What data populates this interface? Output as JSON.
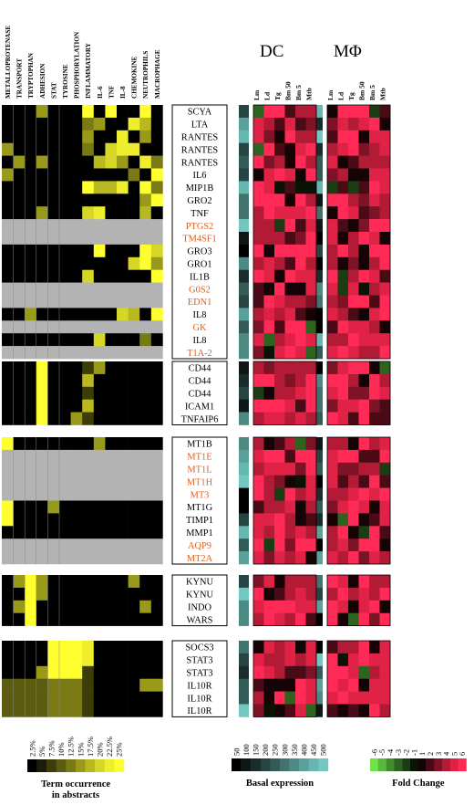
{
  "term_columns": [
    "METALLOPROTENASE",
    "TRANSPORT",
    "TRYPTOPHAN",
    "ADHESION",
    "STAT",
    "TYROSINE",
    "PHOSPHORYLATION",
    "INFLAMMATORY",
    "IL-6",
    "TNF",
    "IL-8",
    "CHEMOKINE",
    "NEUTROPHILS",
    "MACROPHAGE"
  ],
  "panels": [
    {
      "name": "DC",
      "columns": [
        "Lm",
        "Ld",
        "Tg",
        "Bm 50",
        "Bm 5",
        "Mtb"
      ]
    },
    {
      "name": "MΦ",
      "columns": [
        "Lm",
        "Ld",
        "Tg",
        "Bm 50",
        "Bm 5",
        "Mtb"
      ]
    }
  ],
  "groups": [
    {
      "genes": [
        {
          "label": "SCYA",
          "highlight": false
        },
        {
          "label": "LTA",
          "highlight": false
        },
        {
          "label": "RANTES",
          "highlight": false
        },
        {
          "label": "RANTES",
          "highlight": false
        },
        {
          "label": "RANTES",
          "highlight": false
        },
        {
          "label": "IL6",
          "highlight": false
        },
        {
          "label": "MIP1B",
          "highlight": false
        },
        {
          "label": "GRO2",
          "highlight": false
        },
        {
          "label": "TNF",
          "highlight": false
        },
        {
          "label": "PTGS2",
          "highlight": true
        },
        {
          "label": "TM4SF1",
          "highlight": true
        },
        {
          "label": "GRO3",
          "highlight": false
        },
        {
          "label": "GRO1",
          "highlight": false
        },
        {
          "label": "IL1B",
          "highlight": false
        },
        {
          "label": "G0S2",
          "highlight": true
        },
        {
          "label": "EDN1",
          "highlight": true
        },
        {
          "label": "IL8",
          "highlight": false
        },
        {
          "label": "GK",
          "highlight": true
        },
        {
          "label": "IL8",
          "highlight": false
        },
        {
          "label": "T1A-2",
          "highlight": true
        }
      ]
    },
    {
      "genes": [
        {
          "label": "CD44",
          "highlight": false
        },
        {
          "label": "CD44",
          "highlight": false
        },
        {
          "label": "CD44",
          "highlight": false
        },
        {
          "label": "ICAM1",
          "highlight": false
        },
        {
          "label": "TNFAIP6",
          "highlight": false
        }
      ]
    },
    {
      "genes": [
        {
          "label": "MT1B",
          "highlight": false
        },
        {
          "label": "MT1E",
          "highlight": true
        },
        {
          "label": "MT1L",
          "highlight": true
        },
        {
          "label": "MT1H",
          "highlight": true
        },
        {
          "label": "MT3",
          "highlight": true
        },
        {
          "label": "MT1G",
          "highlight": false
        },
        {
          "label": "TIMP1",
          "highlight": false
        },
        {
          "label": "MMP1",
          "highlight": false
        },
        {
          "label": "AQP9",
          "highlight": true
        },
        {
          "label": "MT2A",
          "highlight": true
        }
      ]
    },
    {
      "genes": [
        {
          "label": "KYNU",
          "highlight": false
        },
        {
          "label": "KYNU",
          "highlight": false
        },
        {
          "label": "INDO",
          "highlight": false
        },
        {
          "label": "WARS",
          "highlight": false
        }
      ]
    },
    {
      "genes": [
        {
          "label": "SOCS3",
          "highlight": false
        },
        {
          "label": "STAT3",
          "highlight": false
        },
        {
          "label": "STAT3",
          "highlight": false
        },
        {
          "label": "IL10R",
          "highlight": false
        },
        {
          "label": "IL10R",
          "highlight": false
        },
        {
          "label": "IL10R",
          "highlight": false
        }
      ]
    }
  ],
  "legends": {
    "term": {
      "title_line1": "Term occurrence",
      "title_line2": "in abstracts",
      "ticks": [
        "2.5%",
        "5%",
        "7.5%",
        "10%",
        "12.5%",
        "15%",
        "17.5%",
        "20%",
        "22.5%",
        "25%"
      ],
      "colors": [
        "#000000",
        "#1d1d05",
        "#3d3d08",
        "#5c5c10",
        "#7a7a14",
        "#99991a",
        "#b8b820",
        "#d6d626",
        "#eeee2c",
        "#ffff30"
      ]
    },
    "basal": {
      "title": "Basal expression",
      "ticks": [
        "50",
        "100",
        "150",
        "200",
        "250",
        "300",
        "350",
        "400",
        "450",
        "500"
      ],
      "colors": [
        "#000000",
        "#0e1716",
        "#1a2d2b",
        "#264441",
        "#335c58",
        "#41746f",
        "#4d8a84",
        "#5aa19a",
        "#66b7b0",
        "#72c8c0"
      ]
    },
    "fold": {
      "title": "Fold Change",
      "ticks": [
        "-6",
        "-5",
        "-4",
        "-3",
        "-2",
        "-1",
        "1",
        "2",
        "3",
        "4",
        "5",
        "6"
      ],
      "colors": [
        "#6fe34a",
        "#58b83c",
        "#438c2d",
        "#2f6320",
        "#1c3c13",
        "#0a1406",
        "#150306",
        "#4a0a16",
        "#7e1226",
        "#b21a36",
        "#e02246",
        "#ff2a55"
      ]
    }
  },
  "colors": {
    "highlight_text": "#e0601c",
    "gray_row": "#b3b3b3",
    "term_yellow": "#ffff30",
    "fold_red": "#ff2a55",
    "fold_green": "#6fe34a",
    "basal_teal": "#72c8c0"
  }
}
